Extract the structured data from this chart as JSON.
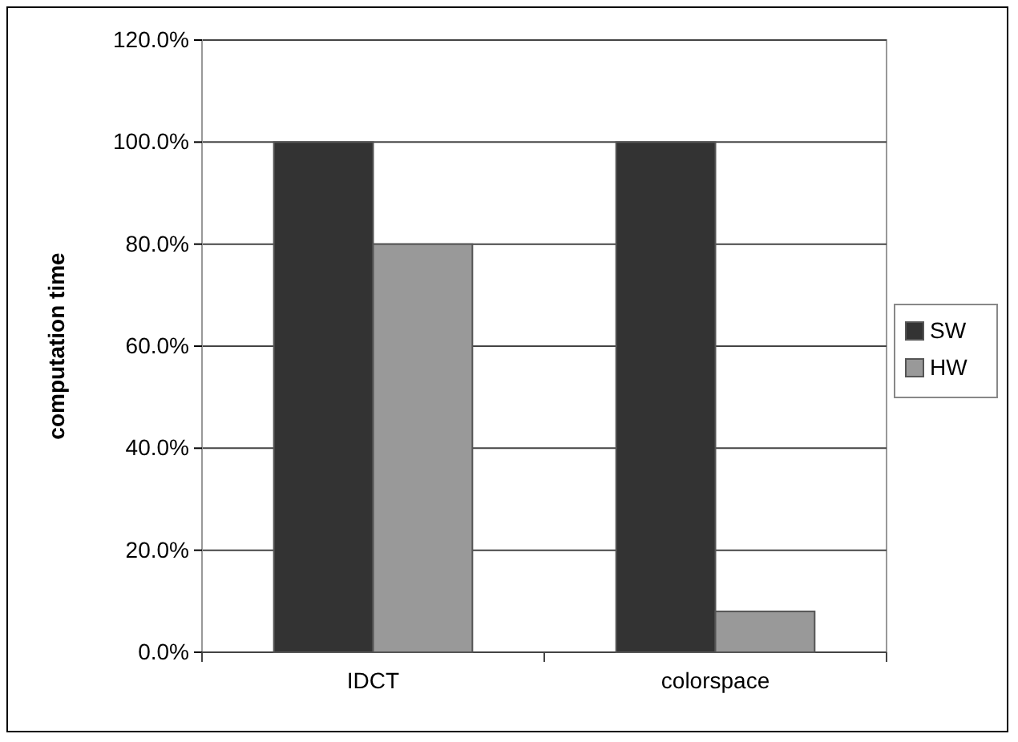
{
  "chart_data": {
    "type": "bar",
    "ylabel": "computation time",
    "categories": [
      "IDCT",
      "colorspace"
    ],
    "series": [
      {
        "name": "SW",
        "color": "#333333",
        "values": [
          100,
          100
        ]
      },
      {
        "name": "HW",
        "color": "#999999",
        "values": [
          80,
          8
        ]
      }
    ],
    "ylim": [
      0,
      120
    ],
    "yticks": [
      {
        "value": 0,
        "label": "0.0%"
      },
      {
        "value": 20,
        "label": "20.0%"
      },
      {
        "value": 40,
        "label": "40.0%"
      },
      {
        "value": 60,
        "label": "60.0%"
      },
      {
        "value": 80,
        "label": "80.0%"
      },
      {
        "value": 100,
        "label": "100.0%"
      },
      {
        "value": 120,
        "label": "120.0%"
      }
    ],
    "grid": "y",
    "legend": "right"
  }
}
